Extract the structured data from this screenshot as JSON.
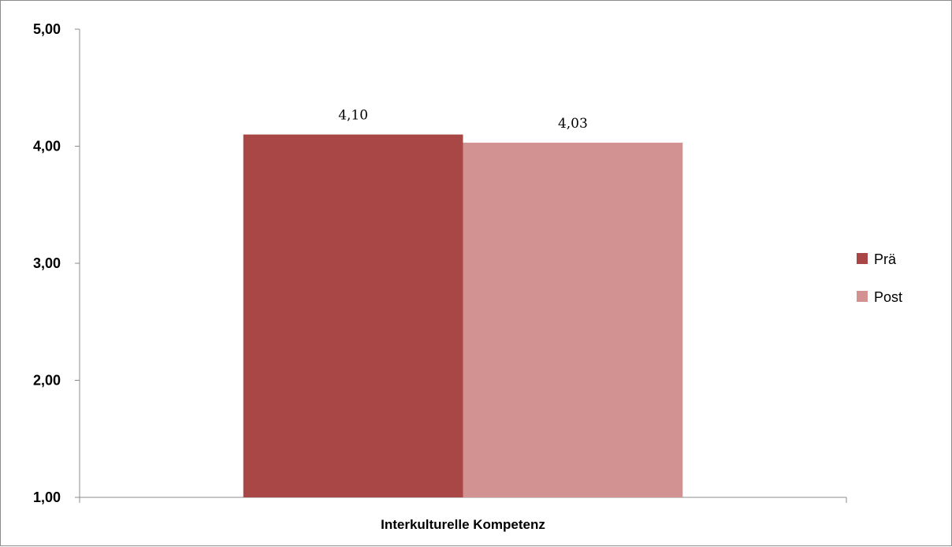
{
  "chart_data": {
    "type": "bar",
    "title": "",
    "xlabel": "",
    "ylabel": "",
    "categories": [
      "Interkulturelle Kompetenz"
    ],
    "series": [
      {
        "name": "Prä",
        "values": [
          4.1
        ],
        "color": "#a84745",
        "label": "4,10"
      },
      {
        "name": "Post",
        "values": [
          4.03
        ],
        "color": "#d39292",
        "label": "4,03"
      }
    ],
    "ylim": [
      1,
      5
    ],
    "yticks": [
      1,
      2,
      3,
      4,
      5
    ],
    "ytick_labels": [
      "1,00",
      "2,00",
      "3,00",
      "4,00",
      "5,00"
    ],
    "grid": false,
    "legend_position": "right"
  }
}
